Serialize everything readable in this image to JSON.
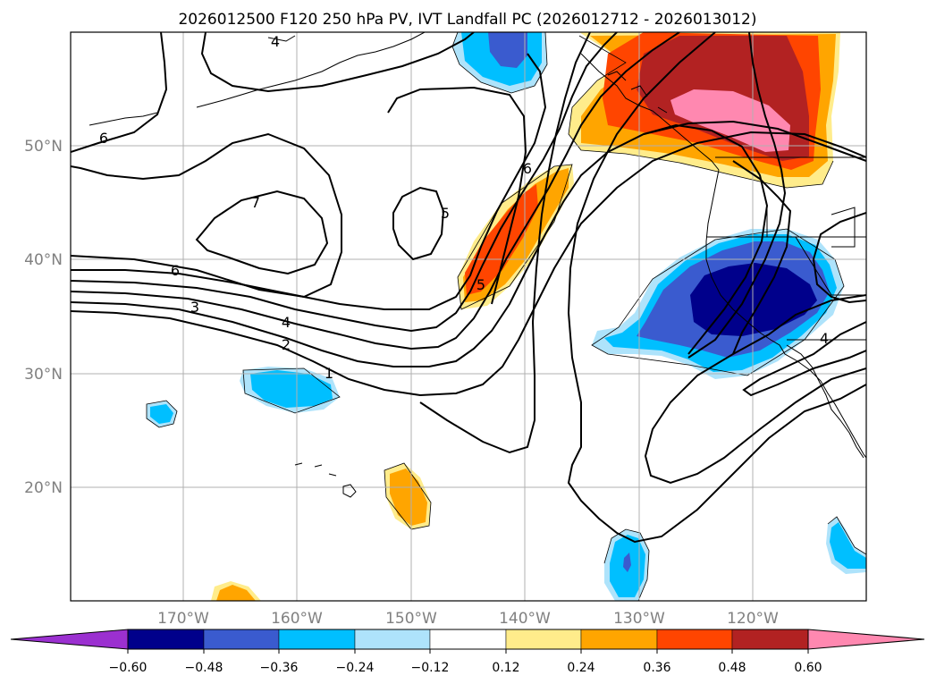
{
  "title": "2026012500 F120 250 hPa PV, IVT Landfall PC (2026012712 - 2026013012)",
  "lat_labels": [
    "50°N",
    "40°N",
    "30°N",
    "20°N"
  ],
  "lon_labels": [
    "170°W",
    "160°W",
    "150°W",
    "140°W",
    "130°W",
    "120°W"
  ],
  "colorbar": {
    "ticks": [
      "−0.60",
      "−0.48",
      "−0.36",
      "−0.24",
      "−0.12",
      "0.12",
      "0.24",
      "0.36",
      "0.48",
      "0.60"
    ],
    "colors": [
      "#9b30d0",
      "#00008b",
      "#3a5bcf",
      "#00bfff",
      "#aee3fb",
      "#ffffff",
      "#ffec8b",
      "#ffa500",
      "#ff4500",
      "#b22222",
      "#ff88b0"
    ]
  },
  "contour_labels": [
    "1",
    "2",
    "3",
    "4",
    "5",
    "6",
    "7",
    "4",
    "5",
    "6",
    "4",
    "6"
  ],
  "fill_colors": {
    "deep_neg": "#00008b",
    "mid_neg": "#3a5bcf",
    "neg": "#00bfff",
    "light_neg": "#aee3fb",
    "light_pos": "#ffec8b",
    "pos": "#ffa500",
    "mid_pos": "#ff4500",
    "high_pos": "#b22222",
    "top_pos": "#ff88b0"
  }
}
